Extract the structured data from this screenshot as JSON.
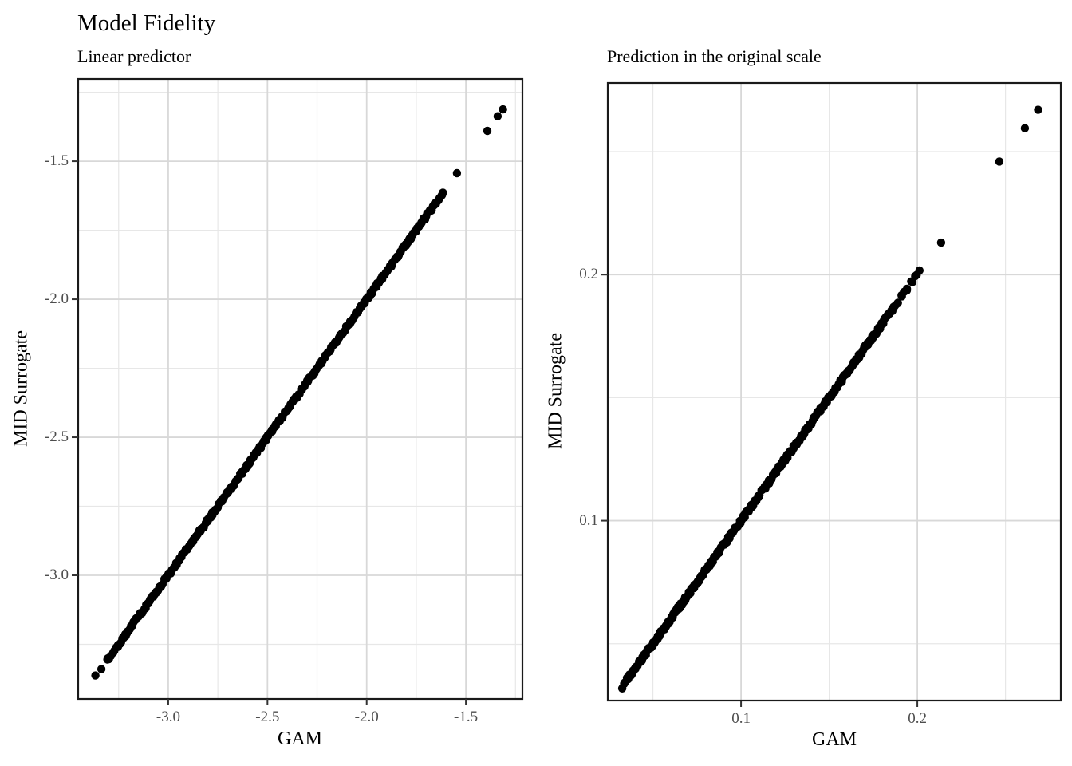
{
  "title": {
    "text": "Model Fidelity"
  },
  "style": {
    "background": "#ffffff",
    "point_color": "#000000",
    "point_radius": 5.2,
    "grid_major_color": "#d8d8d8",
    "grid_minor_color": "#e7e7e7",
    "panel_border_color": "#1a1a1a",
    "tick_color": "#333333",
    "tick_label_color": "#4d4d4d",
    "text_color": "#000000"
  },
  "chart_data": [
    {
      "type": "scatter",
      "title": "Linear predictor",
      "xlabel": "GAM",
      "ylabel": "MID Surrogate",
      "legend": "none",
      "grid": true,
      "relation": "points lie on the identity line y = x (surrogate fidelity)",
      "xlim": [
        -3.454,
        -1.215
      ],
      "ylim": [
        -3.448,
        -1.202
      ],
      "xticks": [
        -3.0,
        -2.5,
        -2.0,
        -1.5
      ],
      "xtick_labels": [
        "-3.0",
        "-2.5",
        "-2.0",
        "-1.5"
      ],
      "yticks": [
        -1.5,
        -2.0,
        -2.5,
        -3.0
      ],
      "ytick_labels": [
        "-1.5",
        "-2.0",
        "-2.5",
        "-3.0"
      ],
      "x_minor_breaks": [
        -3.25,
        -2.75,
        -2.25,
        -1.75,
        -1.25
      ],
      "y_minor_breaks": [
        -3.25,
        -2.75,
        -2.25,
        -1.75,
        -1.25
      ],
      "dense_segments": [
        {
          "from": -3.31,
          "to": -3.26,
          "n": 7,
          "jitter": 0.006
        },
        {
          "from": -3.26,
          "to": -1.66,
          "n": 310,
          "jitter": 0.006
        },
        {
          "from": -1.66,
          "to": -1.612,
          "n": 9,
          "jitter": 0.004
        }
      ],
      "isolated_points": [
        [
          -3.367,
          -3.363
        ],
        [
          -3.337,
          -3.34
        ],
        [
          -1.545,
          -1.543
        ],
        [
          -1.392,
          -1.39
        ],
        [
          -1.34,
          -1.337
        ],
        [
          -1.313,
          -1.312
        ]
      ]
    },
    {
      "type": "scatter",
      "title": "Prediction in the original scale",
      "xlabel": "GAM",
      "ylabel": "MID Surrogate",
      "legend": "none",
      "grid": true,
      "relation": "points lie on the identity line y = x (surrogate fidelity)",
      "xlim": [
        0.0244,
        0.2814
      ],
      "ylim": [
        0.0269,
        0.2779
      ],
      "xticks": [
        0.1,
        0.2
      ],
      "xtick_labels": [
        "0.1",
        "0.2"
      ],
      "yticks": [
        0.2,
        0.1
      ],
      "ytick_labels": [
        "0.2",
        "0.1"
      ],
      "x_minor_breaks": [
        0.05,
        0.15,
        0.25
      ],
      "y_minor_breaks": [
        0.05,
        0.15,
        0.25
      ],
      "dense_segments": [
        {
          "from": 0.0325,
          "to": 0.038,
          "n": 7,
          "jitter": 0.0008
        },
        {
          "from": 0.038,
          "to": 0.186,
          "n": 310,
          "jitter": 0.0008
        },
        {
          "from": 0.186,
          "to": 0.2005,
          "n": 14,
          "jitter": 0.0007
        }
      ],
      "isolated_points": [
        [
          0.2135,
          0.213
        ],
        [
          0.2465,
          0.246
        ],
        [
          0.261,
          0.2595
        ],
        [
          0.2685,
          0.267
        ]
      ]
    }
  ]
}
